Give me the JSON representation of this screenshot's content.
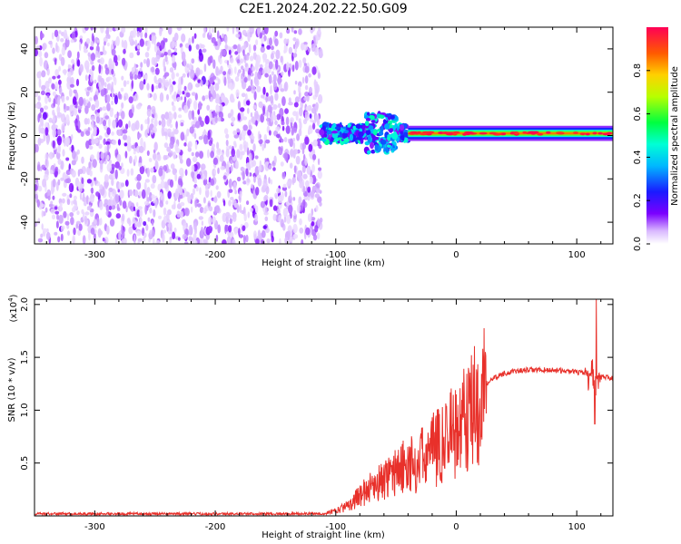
{
  "title": "C2E1.2024.202.22.50.G09",
  "chart_data": [
    {
      "type": "heatmap",
      "title": "C2E1.2024.202.22.50.G09",
      "xlabel": "Height of straight line (km)",
      "ylabel": "Frequency (Hz)",
      "xlim": [
        -350,
        130
      ],
      "ylim": [
        -50,
        50
      ],
      "x_ticks": [
        -300,
        -200,
        -100,
        0,
        100
      ],
      "y_ticks": [
        -40,
        -20,
        0,
        20,
        40
      ],
      "grid": false,
      "colorbar": {
        "label": "Normalized spectral amplitude",
        "range": [
          0,
          1
        ],
        "ticks": [
          "0.0",
          "0.2",
          "0.4",
          "0.6",
          "0.8"
        ],
        "colormap": "rainbow (violet to red)"
      },
      "regions": [
        {
          "x_range": [
            -350,
            -112
          ],
          "freq_range": [
            -50,
            50
          ],
          "amplitude": "low, broadband noise (violet)"
        },
        {
          "x_range": [
            -112,
            -40
          ],
          "freq_center": 0,
          "freq_spread": [
            -5,
            12
          ],
          "amplitude": "0.3-0.5 (blue-cyan-green)"
        },
        {
          "x_range": [
            -40,
            130
          ],
          "freq_center": 1,
          "freq_spread": [
            -2,
            4
          ],
          "amplitude": "peak near 1.0 (red core)"
        }
      ],
      "colors": {
        "noise": "#8a2be2",
        "core": "#e8231f",
        "mid": "#00e5c8"
      }
    },
    {
      "type": "line",
      "xlabel": "Height of straight line (km)",
      "ylabel": "SNR (10 * v/v)",
      "y_multiplier": "(x10",
      "y_multiplier_exp": "4",
      "xlim": [
        -350,
        130
      ],
      "ylim": [
        0,
        2.05
      ],
      "x_ticks": [
        -300,
        -200,
        -100,
        0,
        100
      ],
      "y_ticks": [
        0.5,
        1.0,
        1.5,
        2.0
      ],
      "grid": false,
      "series": [
        {
          "color": "#e8302a",
          "x": [
            -350,
            -300,
            -250,
            -200,
            -150,
            -110,
            -100,
            -90,
            -80,
            -70,
            -60,
            -50,
            -40,
            -30,
            -20,
            -10,
            -5,
            0,
            5,
            10,
            15,
            20,
            25,
            30,
            40,
            50,
            60,
            70,
            80,
            90,
            100,
            105,
            110,
            115,
            118,
            120,
            125,
            130
          ],
          "y": [
            0.02,
            0.02,
            0.02,
            0.02,
            0.02,
            0.02,
            0.05,
            0.1,
            0.2,
            0.3,
            0.35,
            0.45,
            0.5,
            0.55,
            0.65,
            0.75,
            0.85,
            0.85,
            0.95,
            1.0,
            1.1,
            1.2,
            1.25,
            1.3,
            1.35,
            1.37,
            1.38,
            1.38,
            1.38,
            1.37,
            1.36,
            1.35,
            1.35,
            1.3,
            1.33,
            1.32,
            1.31,
            1.3
          ]
        }
      ],
      "annotations": [
        {
          "x": 116,
          "y": 2.05,
          "note": "spike"
        },
        {
          "x": 115,
          "y": 0.87,
          "note": "dip"
        }
      ]
    }
  ]
}
